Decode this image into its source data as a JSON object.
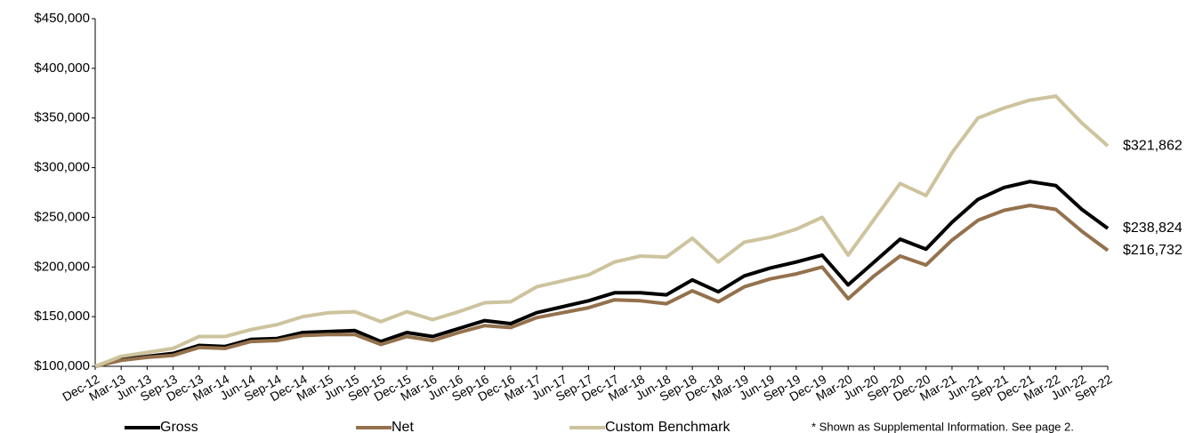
{
  "chart_data": {
    "type": "line",
    "categories": [
      "Dec-12",
      "Mar-13",
      "Jun-13",
      "Sep-13",
      "Dec-13",
      "Mar-14",
      "Jun-14",
      "Sep-14",
      "Dec-14",
      "Mar-15",
      "Jun-15",
      "Sep-15",
      "Dec-15",
      "Mar-16",
      "Jun-16",
      "Sep-16",
      "Dec-16",
      "Mar-17",
      "Jun-17",
      "Sep-17",
      "Dec-17",
      "Mar-18",
      "Jun-18",
      "Sep-18",
      "Dec-18",
      "Mar-19",
      "Jun-19",
      "Sep-19",
      "Dec-19",
      "Mar-20",
      "Jun-20",
      "Sep-20",
      "Dec-20",
      "Mar-21",
      "Jun-21",
      "Sep-21",
      "Dec-21",
      "Mar-22",
      "Jun-22",
      "Sep-22"
    ],
    "series": [
      {
        "name": "Gross",
        "color": "#000000",
        "values": [
          100000,
          107000,
          110000,
          113000,
          121000,
          120000,
          127000,
          128000,
          134000,
          135000,
          136000,
          125000,
          134000,
          130000,
          138000,
          146000,
          143000,
          154000,
          160000,
          166000,
          174000,
          174000,
          172000,
          187000,
          175000,
          191000,
          199000,
          205000,
          212000,
          182000,
          205000,
          228000,
          218000,
          245000,
          268000,
          280000,
          286000,
          282000,
          258000,
          238824
        ],
        "value_labels": [
          null,
          null,
          null,
          null,
          null,
          null,
          null,
          null,
          null,
          null,
          null,
          null,
          null,
          null,
          null,
          null,
          null,
          null,
          null,
          null,
          null,
          null,
          null,
          null,
          null,
          null,
          null,
          null,
          null,
          null,
          null,
          null,
          null,
          null,
          null,
          null,
          null,
          null,
          null,
          "$238,824"
        ]
      },
      {
        "name": "Net",
        "color": "#94714d",
        "values": [
          100000,
          106000,
          109000,
          111000,
          119000,
          118000,
          125000,
          126000,
          131000,
          132000,
          132000,
          122000,
          130000,
          126000,
          134000,
          141000,
          139000,
          149000,
          154000,
          159000,
          167000,
          166000,
          163000,
          176000,
          165000,
          180000,
          188000,
          193000,
          200000,
          168000,
          191000,
          211000,
          202000,
          227000,
          247000,
          257000,
          262000,
          258000,
          236000,
          216732
        ],
        "value_labels": [
          null,
          null,
          null,
          null,
          null,
          null,
          null,
          null,
          null,
          null,
          null,
          null,
          null,
          null,
          null,
          null,
          null,
          null,
          null,
          null,
          null,
          null,
          null,
          null,
          null,
          null,
          null,
          null,
          null,
          null,
          null,
          null,
          null,
          null,
          null,
          null,
          null,
          null,
          null,
          "$216,732"
        ]
      },
      {
        "name": "Custom Benchmark",
        "color": "#cdc39d",
        "values": [
          100000,
          110000,
          114000,
          118000,
          130000,
          130000,
          137000,
          142000,
          150000,
          154000,
          155000,
          145000,
          155000,
          147000,
          155000,
          164000,
          165000,
          180000,
          186000,
          192000,
          205000,
          211000,
          210000,
          229000,
          205000,
          225000,
          230000,
          238000,
          250000,
          212000,
          248000,
          284000,
          272000,
          315000,
          350000,
          360000,
          368000,
          372000,
          345000,
          321862
        ],
        "value_labels": [
          null,
          null,
          null,
          null,
          null,
          null,
          null,
          null,
          null,
          null,
          null,
          null,
          null,
          null,
          null,
          null,
          null,
          null,
          null,
          null,
          null,
          null,
          null,
          null,
          null,
          null,
          null,
          null,
          null,
          null,
          null,
          null,
          null,
          null,
          null,
          null,
          null,
          null,
          null,
          "$321,862"
        ]
      }
    ],
    "ylim": [
      100000,
      450000
    ],
    "yticks": [
      {
        "value": 100000,
        "label": "$100,000"
      },
      {
        "value": 150000,
        "label": "$150,000"
      },
      {
        "value": 200000,
        "label": "$200,000"
      },
      {
        "value": 250000,
        "label": "$250,000"
      },
      {
        "value": 300000,
        "label": "$300,000"
      },
      {
        "value": 350000,
        "label": "$350,000"
      },
      {
        "value": 400000,
        "label": "$400,000"
      },
      {
        "value": 450000,
        "label": "$450,000"
      }
    ],
    "grid": false,
    "legend": "bottom",
    "footnote": "* Shown as Supplemental Information.  See page 2."
  }
}
